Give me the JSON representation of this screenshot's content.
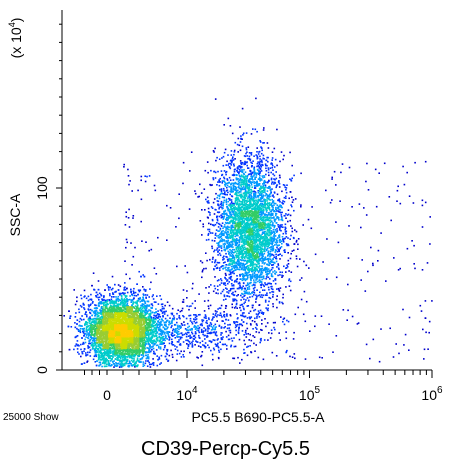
{
  "chart_data": {
    "type": "scatter",
    "title": "CD39-Percp-Cy5.5",
    "xlabel": "PC5.5 B690-PC5.5-A",
    "ylabel": "SSC-A",
    "y_multiplier_label": "(x 10",
    "y_multiplier_exp": "4",
    "events_label": "25000 Show",
    "x_ticks": [
      {
        "value": 0,
        "base": "0",
        "exp": ""
      },
      {
        "value": 10000,
        "base": "10",
        "exp": "4"
      },
      {
        "value": 100000,
        "base": "10",
        "exp": "5"
      },
      {
        "value": 1000000,
        "base": "10",
        "exp": "6"
      }
    ],
    "y_ticks": [
      {
        "value": 0,
        "label": "0"
      },
      {
        "value": 100,
        "label": "100"
      }
    ],
    "xlim": [
      -4000,
      1000000
    ],
    "ylim": [
      0,
      200
    ],
    "populations": [
      {
        "name_hidden": "negative",
        "x_center": 1500,
        "y_center": 22,
        "x_spread": 2200,
        "y_spread": 9,
        "count": 5200
      },
      {
        "name_hidden": "low",
        "x_center": 8000,
        "y_center": 22,
        "x_spread": 0.35,
        "y_spread": 7,
        "count": 900
      },
      {
        "name_hidden": "positive",
        "x_center": 32000,
        "y_center": 78,
        "x_spread": 0.14,
        "y_spread": 20,
        "count": 3800
      }
    ],
    "density_colors": [
      "#0000cc",
      "#0033ff",
      "#0099ff",
      "#00cccc",
      "#33cc66",
      "#99cc33",
      "#ccdd00",
      "#ffcc00"
    ]
  }
}
